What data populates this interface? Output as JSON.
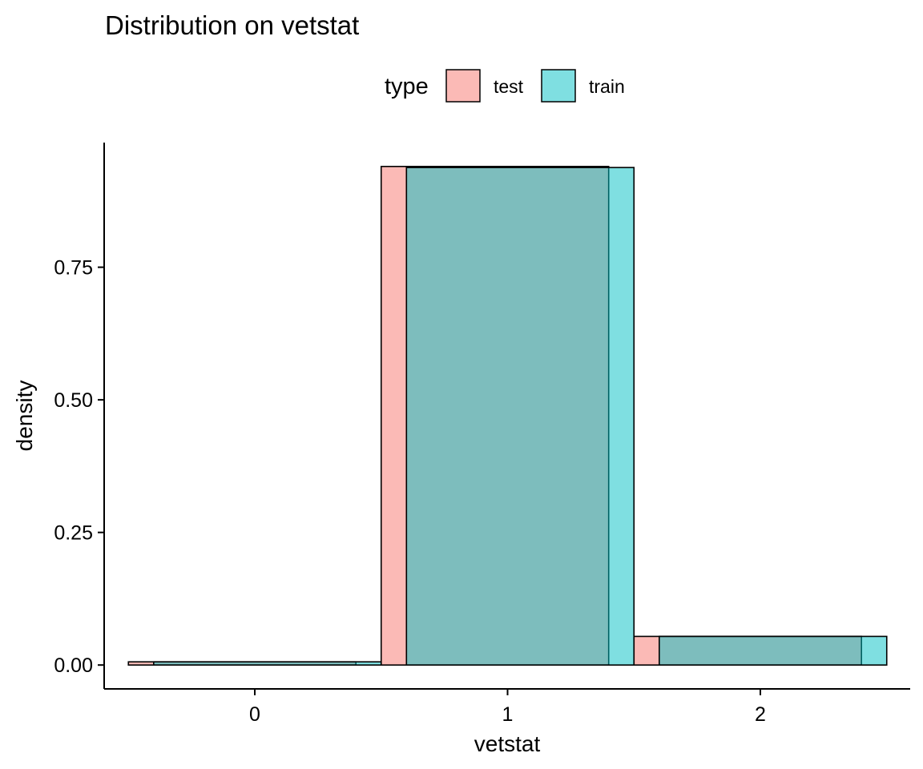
{
  "chart_data": {
    "type": "bar",
    "title": "Distribution on vetstat",
    "xlabel": "vetstat",
    "ylabel": "density",
    "categories": [
      "0",
      "1",
      "2"
    ],
    "series": [
      {
        "name": "test",
        "values": [
          0.006,
          0.94,
          0.054
        ],
        "color": "#F8766D"
      },
      {
        "name": "train",
        "values": [
          0.006,
          0.938,
          0.054
        ],
        "color": "#00BFC4"
      }
    ],
    "ylim": [
      -0.045,
      0.985
    ],
    "yticks": [
      "0.00",
      "0.25",
      "0.50",
      "0.75"
    ],
    "ytick_values": [
      0,
      0.25,
      0.5,
      0.75
    ],
    "legend": {
      "title": "type",
      "position": "top",
      "entries": [
        "test",
        "train"
      ]
    },
    "fill_alpha": 0.5,
    "grid": false
  }
}
